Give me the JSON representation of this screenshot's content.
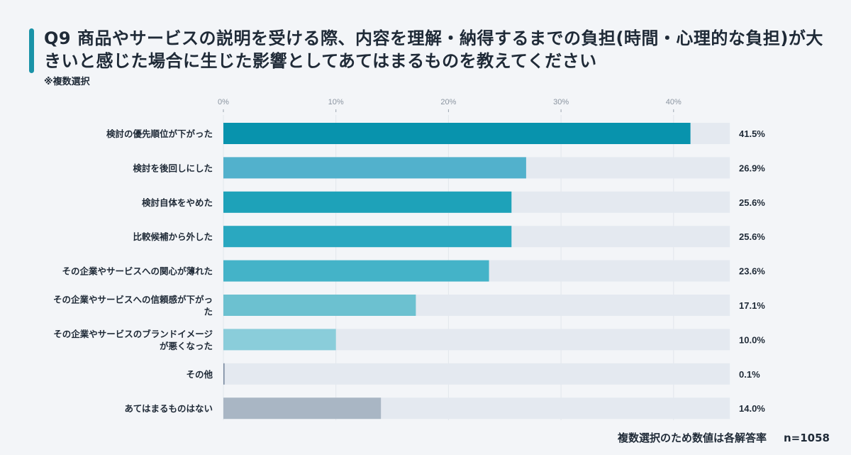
{
  "chart_data": {
    "type": "bar",
    "orientation": "horizontal",
    "title": "Q9 商品やサービスの説明を受ける際、内容を理解・納得するまでの負担(時間・心理的な負担)が大きいと感じた場合に生じた影響としてあてはまるものを教えてください",
    "subtitle": "※複数選択",
    "categories": [
      "検討の優先順位が下がった",
      "検討を後回しにした",
      "検討自体をやめた",
      "比較候補から外した",
      "その企業やサービスへの関心が薄れた",
      "その企業やサービスへの信頼感が下がった",
      "その企業やサービスのブランドイメージが悪くなった",
      "その他",
      "あてはまるものはない"
    ],
    "category_lines": [
      [
        "検討の優先順位が下がった"
      ],
      [
        "検討を後回しにした"
      ],
      [
        "検討自体をやめた"
      ],
      [
        "比較候補から外した"
      ],
      [
        "その企業やサービスへの関心が薄れた"
      ],
      [
        "その企業やサービスへの信頼感が下がっ",
        "た"
      ],
      [
        "その企業やサービスのブランドイメージ",
        "が悪くなった"
      ],
      [
        "その他"
      ],
      [
        "あてはまるものはない"
      ]
    ],
    "values": [
      41.5,
      26.9,
      25.6,
      25.6,
      23.6,
      17.1,
      10.0,
      0.1,
      14.0
    ],
    "value_labels": [
      "41.5%",
      "26.9%",
      "25.6%",
      "25.6%",
      "23.6%",
      "17.1%",
      "10.0%",
      "0.1%",
      "14.0%"
    ],
    "xticks": [
      0,
      10,
      20,
      30,
      40
    ],
    "xtick_labels": [
      "0%",
      "10%",
      "20%",
      "30%",
      "40%"
    ],
    "xlim": [
      0,
      45
    ],
    "grid": true,
    "colors": [
      "#0893ad",
      "#52b1cc",
      "#1ea2b9",
      "#2aa8c0",
      "#44b3c8",
      "#6cc1d0",
      "#8acdda",
      "#7a8aa0",
      "#a9b6c4"
    ],
    "track_color": "#e4e9f0"
  },
  "footer": {
    "note": "複数選択のため数値は各解答率",
    "n": "n=1058"
  }
}
